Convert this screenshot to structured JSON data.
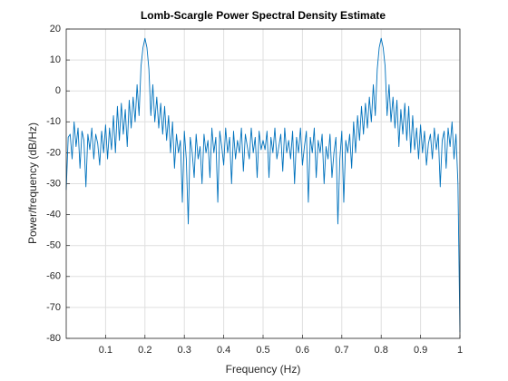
{
  "chart_data": {
    "type": "line",
    "title": "Lomb-Scargle Power Spectral Density Estimate",
    "x_label": "Frequency (Hz)",
    "y_label": "Power/frequency (dB/Hz)",
    "xlim": [
      0,
      1
    ],
    "ylim": [
      -80,
      20
    ],
    "xticks": [
      0.1,
      0.2,
      0.3,
      0.4,
      0.5,
      0.6,
      0.7,
      0.8,
      0.9,
      1
    ],
    "yticks": [
      -80,
      -70,
      -60,
      -50,
      -40,
      -30,
      -20,
      -10,
      0,
      10,
      20
    ],
    "grid": true,
    "x": [
      0,
      0.005,
      0.01,
      0.015,
      0.02,
      0.025,
      0.03,
      0.035,
      0.04,
      0.045,
      0.05,
      0.055,
      0.06,
      0.065,
      0.07,
      0.075,
      0.08,
      0.085,
      0.09,
      0.095,
      0.1,
      0.105,
      0.11,
      0.115,
      0.12,
      0.125,
      0.13,
      0.135,
      0.14,
      0.145,
      0.15,
      0.155,
      0.16,
      0.165,
      0.17,
      0.175,
      0.18,
      0.185,
      0.19,
      0.195,
      0.2,
      0.205,
      0.21,
      0.215,
      0.22,
      0.225,
      0.23,
      0.235,
      0.24,
      0.245,
      0.25,
      0.255,
      0.26,
      0.265,
      0.27,
      0.275,
      0.28,
      0.285,
      0.29,
      0.295,
      0.3,
      0.305,
      0.31,
      0.315,
      0.32,
      0.325,
      0.33,
      0.335,
      0.34,
      0.345,
      0.35,
      0.355,
      0.36,
      0.365,
      0.37,
      0.375,
      0.38,
      0.385,
      0.39,
      0.395,
      0.4,
      0.405,
      0.41,
      0.415,
      0.42,
      0.425,
      0.43,
      0.435,
      0.44,
      0.445,
      0.45,
      0.455,
      0.46,
      0.465,
      0.47,
      0.475,
      0.48,
      0.485,
      0.49,
      0.495,
      0.5,
      0.505,
      0.51,
      0.515,
      0.52,
      0.525,
      0.53,
      0.535,
      0.54,
      0.545,
      0.55,
      0.555,
      0.56,
      0.565,
      0.57,
      0.575,
      0.58,
      0.585,
      0.59,
      0.595,
      0.6,
      0.605,
      0.61,
      0.615,
      0.62,
      0.625,
      0.63,
      0.635,
      0.64,
      0.645,
      0.65,
      0.655,
      0.66,
      0.665,
      0.67,
      0.675,
      0.68,
      0.685,
      0.69,
      0.695,
      0.7,
      0.705,
      0.71,
      0.715,
      0.72,
      0.725,
      0.73,
      0.735,
      0.74,
      0.745,
      0.75,
      0.755,
      0.76,
      0.765,
      0.77,
      0.775,
      0.78,
      0.785,
      0.79,
      0.795,
      0.8,
      0.805,
      0.81,
      0.815,
      0.82,
      0.825,
      0.83,
      0.835,
      0.84,
      0.845,
      0.85,
      0.855,
      0.86,
      0.865,
      0.87,
      0.875,
      0.88,
      0.885,
      0.89,
      0.895,
      0.9,
      0.905,
      0.91,
      0.915,
      0.92,
      0.925,
      0.93,
      0.935,
      0.94,
      0.945,
      0.95,
      0.955,
      0.96,
      0.965,
      0.97,
      0.975,
      0.98,
      0.985,
      0.99,
      0.995,
      1
    ],
    "series": [
      {
        "color": "#0072bd",
        "values": [
          -32,
          -15,
          -14,
          -22,
          -10,
          -18,
          -12,
          -25,
          -13,
          -16,
          -31,
          -14,
          -19,
          -12,
          -22,
          -14,
          -17,
          -24,
          -13,
          -20,
          -11,
          -22,
          -12,
          -19,
          -8,
          -20,
          -5,
          -16,
          -4,
          -14,
          -6,
          -18,
          -3,
          -12,
          -2,
          -10,
          2,
          -8,
          8,
          14,
          17,
          14,
          7,
          -8,
          2,
          -10,
          -2,
          -12,
          -4,
          -14,
          -5,
          -16,
          -8,
          -20,
          -10,
          -25,
          -14,
          -20,
          -16,
          -36,
          -13,
          -22,
          -43,
          -15,
          -20,
          -28,
          -14,
          -22,
          -18,
          -30,
          -14,
          -20,
          -16,
          -28,
          -12,
          -20,
          -15,
          -36,
          -13,
          -18,
          -24,
          -12,
          -20,
          -15,
          -30,
          -13,
          -22,
          -16,
          -20,
          -12,
          -26,
          -14,
          -18,
          -22,
          -12,
          -20,
          -15,
          -28,
          -13,
          -19,
          -16,
          -19,
          -13,
          -28,
          -15,
          -20,
          -12,
          -22,
          -18,
          -14,
          -26,
          -12,
          -20,
          -16,
          -22,
          -13,
          -30,
          -15,
          -20,
          -12,
          -24,
          -18,
          -13,
          -36,
          -15,
          -20,
          -12,
          -28,
          -16,
          -20,
          -14,
          -30,
          -18,
          -22,
          -14,
          -28,
          -20,
          -15,
          -43,
          -22,
          -13,
          -36,
          -16,
          -20,
          -14,
          -25,
          -10,
          -20,
          -8,
          -16,
          -5,
          -14,
          -4,
          -12,
          -2,
          -10,
          2,
          -8,
          7,
          14,
          17,
          14,
          8,
          -8,
          2,
          -10,
          -2,
          -12,
          -3,
          -18,
          -6,
          -14,
          -4,
          -16,
          -5,
          -20,
          -8,
          -19,
          -12,
          -22,
          -11,
          -20,
          -13,
          -24,
          -17,
          -14,
          -22,
          -12,
          -19,
          -14,
          -31,
          -16,
          -13,
          -25,
          -12,
          -18,
          -10,
          -22,
          -14,
          -30,
          -78
        ]
      }
    ]
  }
}
